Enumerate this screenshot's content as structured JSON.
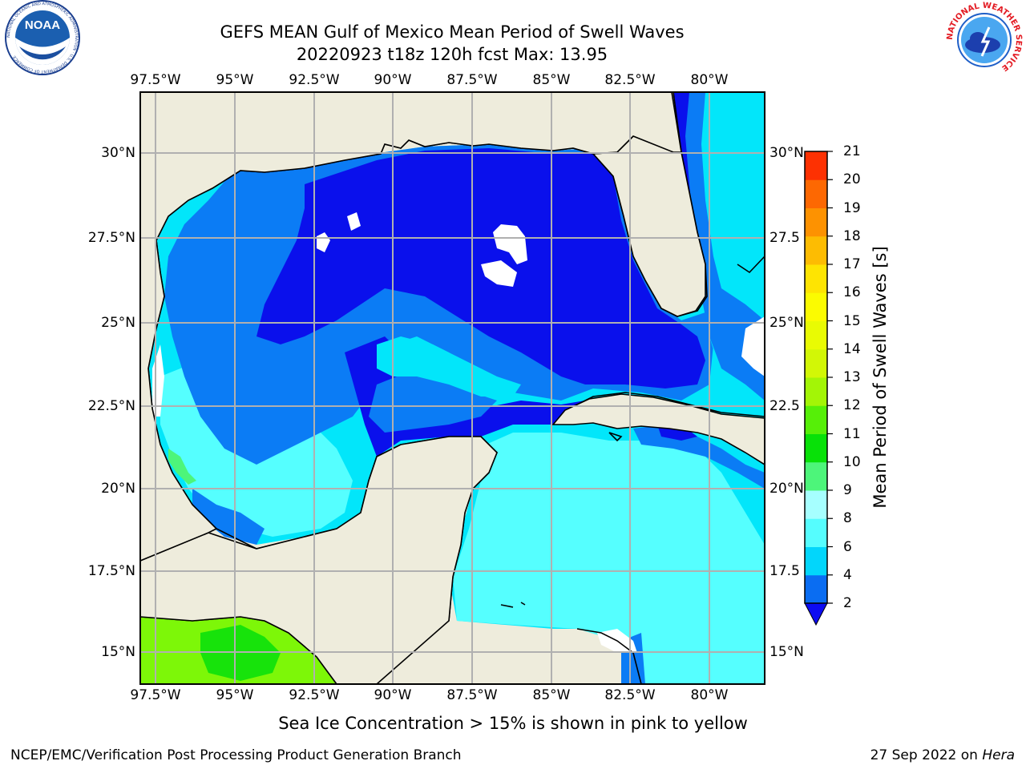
{
  "header": {
    "title_line1": "GEFS MEAN Gulf of Mexico Mean Period of Swell Waves",
    "title_line2": "20220923 t18z 120h fcst   Max: 13.95"
  },
  "logos": {
    "noaa_text": "NOAA",
    "noaa_ring_text": "NATIONAL OCEANIC AND ATMOSPHERIC ADMINISTRATION · U.S. DEPARTMENT OF COMMERCE",
    "nws_ring_text": "NATIONAL WEATHER SERVICE"
  },
  "map": {
    "lon_labels": [
      "97.5°W",
      "95°W",
      "92.5°W",
      "90°W",
      "87.5°W",
      "85°W",
      "82.5°W",
      "80°W"
    ],
    "lat_labels_left": [
      "30°N",
      "27.5°N",
      "25°N",
      "22.5°N",
      "20°N",
      "17.5°N",
      "15°N"
    ],
    "lat_labels_right": [
      "30°N",
      "27.5",
      "25°N",
      "22.5",
      "20°N",
      "17.5",
      "15°N"
    ],
    "colors": {
      "land": "#eeecdc",
      "grid": "#b0b0b0",
      "coast": "#000000",
      "deep_blue": "#0a10ec",
      "mid_blue": "#0b7cf5",
      "cyan": "#02e6fa",
      "light_cyan": "#55ffff",
      "green": "#7df708",
      "dark_green": "#17e30b"
    }
  },
  "colorbar": {
    "label": "Mean Period of Swell Waves [s]",
    "levels": [
      "2",
      "4",
      "6",
      "8",
      "9",
      "10",
      "11",
      "12",
      "13",
      "14",
      "15",
      "16",
      "17",
      "18",
      "19",
      "20",
      "21"
    ],
    "colors": [
      "#0a6df2",
      "#02d6fb",
      "#55fdfe",
      "#a6ffff",
      "#4df57a",
      "#08e108",
      "#56ef08",
      "#a3f506",
      "#d2f706",
      "#e9fb03",
      "#fbfb01",
      "#fee402",
      "#fdbc02",
      "#fd9201",
      "#fd6802",
      "#fd3102"
    ],
    "extend_color": "#0d0cf2"
  },
  "notes": {
    "sea_ice": "Sea Ice Concentration > 15% is shown in pink to yellow"
  },
  "footer": {
    "left": "NCEP/EMC/Verification Post Processing Product Generation Branch",
    "date": "27 Sep 2022 on ",
    "machine": "Hera"
  }
}
